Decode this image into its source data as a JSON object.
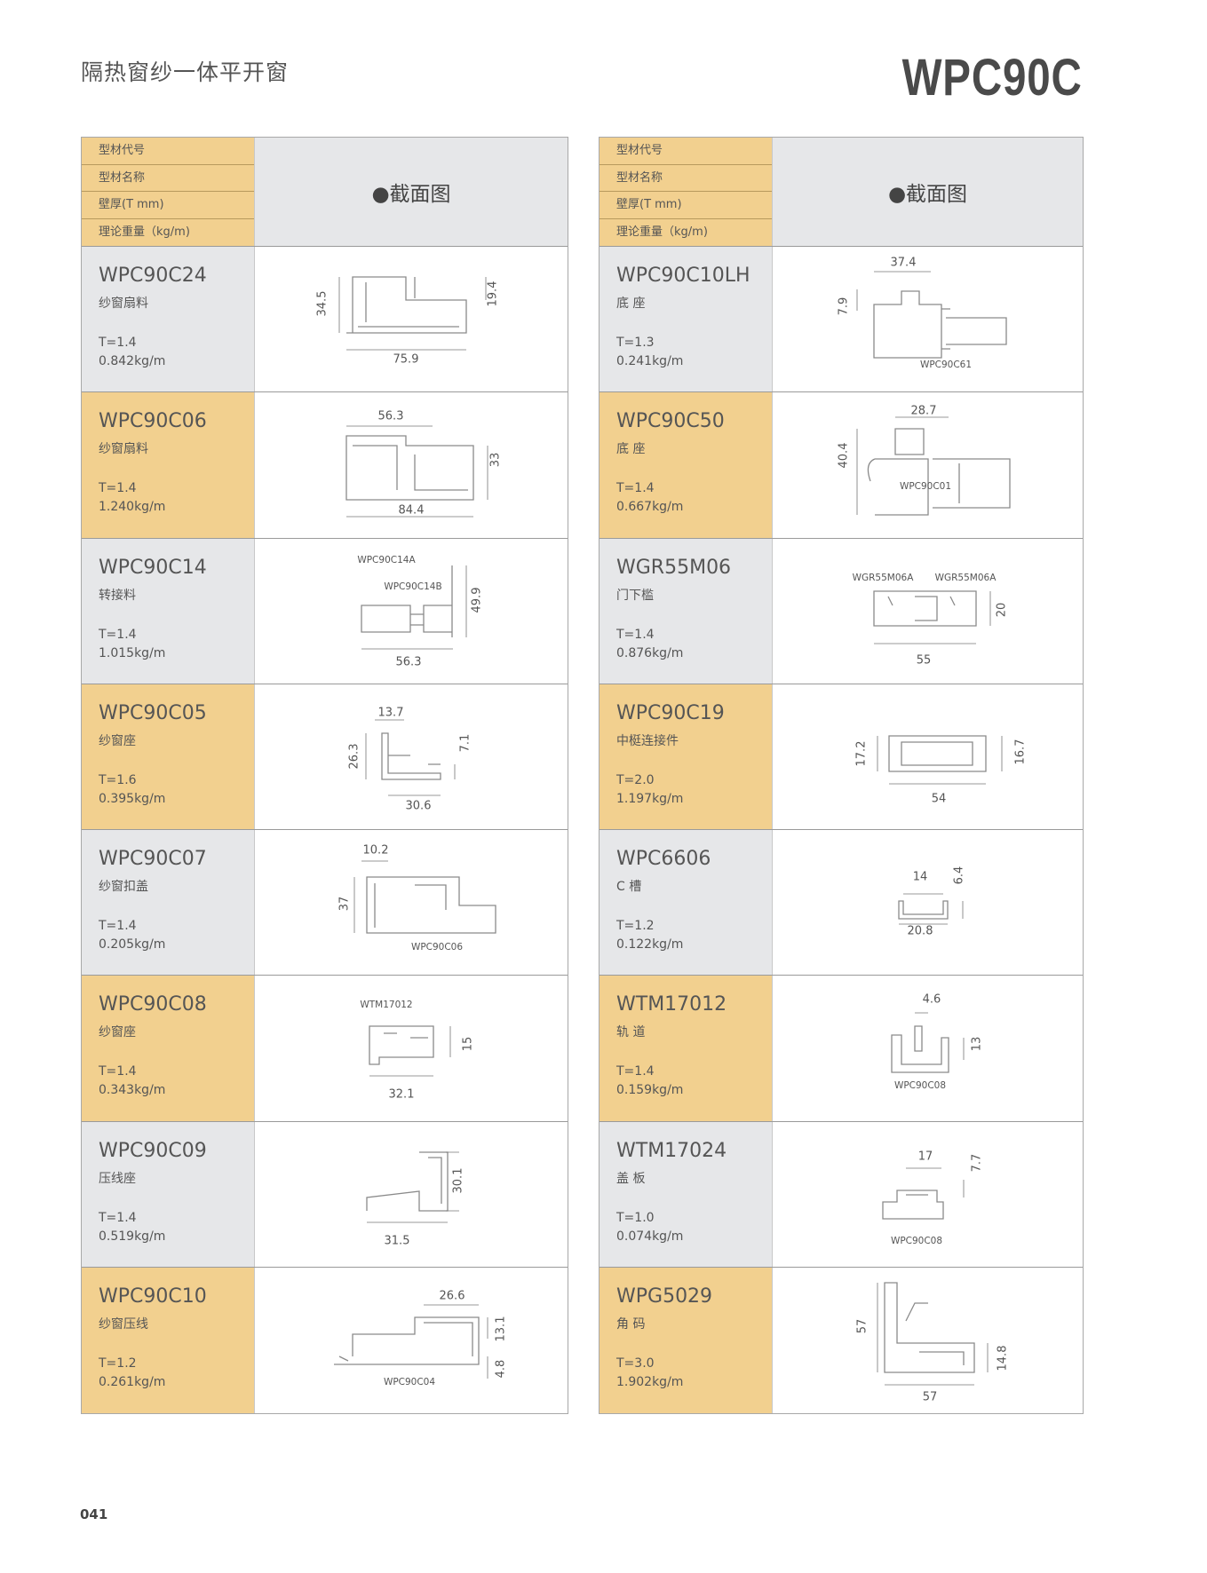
{
  "header": {
    "title": "隔热窗纱一体平开窗",
    "series": "WPC90C",
    "page_number": "041"
  },
  "table_header": {
    "labels": [
      "型材代号",
      "型材名称",
      "壁厚(T mm)",
      "理论重量（kg/m)"
    ],
    "drawing_title": "●截面图"
  },
  "colors": {
    "accent": "#f2d08f",
    "gray": "#e6e7e9",
    "border": "#9a9a9a"
  },
  "left": [
    {
      "code": "WPC90C24",
      "name": "纱窗扇料",
      "thickness": "T=1.4",
      "weight": "0.842kg/m",
      "labels": [
        "34.5",
        "19.4",
        "75.9"
      ]
    },
    {
      "code": "WPC90C06",
      "name": "纱窗扇料",
      "thickness": "T=1.4",
      "weight": "1.240kg/m",
      "labels": [
        "56.3",
        "33",
        "84.4"
      ]
    },
    {
      "code": "WPC90C14",
      "name": "转接料",
      "thickness": "T=1.4",
      "weight": "1.015kg/m",
      "labels": [
        "WPC90C14A",
        "WPC90C14B",
        "49.9",
        "56.3"
      ]
    },
    {
      "code": "WPC90C05",
      "name": "纱窗座",
      "thickness": "T=1.6",
      "weight": "0.395kg/m",
      "labels": [
        "13.7",
        "26.3",
        "7.1",
        "30.6"
      ]
    },
    {
      "code": "WPC90C07",
      "name": "纱窗扣盖",
      "thickness": "T=1.4",
      "weight": "0.205kg/m",
      "labels": [
        "10.2",
        "37",
        "WPC90C06"
      ]
    },
    {
      "code": "WPC90C08",
      "name": "纱窗座",
      "thickness": "T=1.4",
      "weight": "0.343kg/m",
      "labels": [
        "WTM17012",
        "15",
        "32.1"
      ]
    },
    {
      "code": "WPC90C09",
      "name": "压线座",
      "thickness": "T=1.4",
      "weight": "0.519kg/m",
      "labels": [
        "30.1",
        "31.5"
      ]
    },
    {
      "code": "WPC90C10",
      "name": "纱窗压线",
      "thickness": "T=1.2",
      "weight": "0.261kg/m",
      "labels": [
        "26.6",
        "13.1",
        "4.8",
        "WPC90C04"
      ]
    }
  ],
  "right": [
    {
      "code": "WPC90C10LH",
      "name": "底 座",
      "thickness": "T=1.3",
      "weight": "0.241kg/m",
      "labels": [
        "37.4",
        "7.9",
        "WPC90C61"
      ]
    },
    {
      "code": "WPC90C50",
      "name": "底 座",
      "thickness": "T=1.4",
      "weight": "0.667kg/m",
      "labels": [
        "28.7",
        "40.4",
        "WPC90C01"
      ]
    },
    {
      "code": "WGR55M06",
      "name": "门下槛",
      "thickness": "T=1.4",
      "weight": "0.876kg/m",
      "labels": [
        "WGR55M06A",
        "WGR55M06A",
        "20",
        "55"
      ]
    },
    {
      "code": "WPC90C19",
      "name": "中梃连接件",
      "thickness": "T=2.0",
      "weight": "1.197kg/m",
      "labels": [
        "17.2",
        "16.7",
        "54"
      ]
    },
    {
      "code": "WPC6606",
      "name": "C 槽",
      "thickness": "T=1.2",
      "weight": "0.122kg/m",
      "labels": [
        "14",
        "6.4",
        "20.8"
      ]
    },
    {
      "code": "WTM17012",
      "name": "轨 道",
      "thickness": "T=1.4",
      "weight": "0.159kg/m",
      "labels": [
        "4.6",
        "13",
        "WPC90C08"
      ]
    },
    {
      "code": "WTM17024",
      "name": "盖 板",
      "thickness": "T=1.0",
      "weight": "0.074kg/m",
      "labels": [
        "17",
        "7.7",
        "WPC90C08"
      ]
    },
    {
      "code": "WPG5029",
      "name": "角 码",
      "thickness": "T=3.0",
      "weight": "1.902kg/m",
      "labels": [
        "57",
        "14.8",
        "57"
      ]
    }
  ]
}
